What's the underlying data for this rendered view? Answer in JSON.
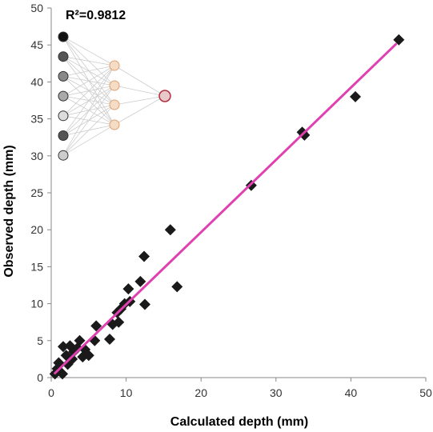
{
  "chart_data": {
    "type": "scatter",
    "title": "",
    "xlabel": "Calculated depth (mm)",
    "ylabel": "Observed depth (mm)",
    "xlim": [
      0,
      50
    ],
    "ylim": [
      0,
      50
    ],
    "x_ticks": [
      0,
      10,
      20,
      30,
      40,
      50
    ],
    "y_ticks": [
      0,
      5,
      10,
      15,
      20,
      25,
      30,
      35,
      40,
      45,
      50
    ],
    "grid": false,
    "legend": "none",
    "annotation": "R²=0.9812",
    "marker": "diamond",
    "marker_color": "#1a1a1a",
    "series": [
      {
        "points": [
          {
            "x": 0.5,
            "y": 0.5
          },
          {
            "x": 0.8,
            "y": 1.2
          },
          {
            "x": 1.0,
            "y": 2.0
          },
          {
            "x": 1.5,
            "y": 0.5
          },
          {
            "x": 1.6,
            "y": 4.2
          },
          {
            "x": 2.0,
            "y": 3.0
          },
          {
            "x": 2.2,
            "y": 1.8
          },
          {
            "x": 2.5,
            "y": 4.3
          },
          {
            "x": 2.8,
            "y": 2.5
          },
          {
            "x": 3.0,
            "y": 3.5
          },
          {
            "x": 3.5,
            "y": 4.0
          },
          {
            "x": 3.8,
            "y": 5.0
          },
          {
            "x": 4.2,
            "y": 2.8
          },
          {
            "x": 4.5,
            "y": 3.8
          },
          {
            "x": 5.0,
            "y": 3.0
          },
          {
            "x": 5.8,
            "y": 5.0
          },
          {
            "x": 6.0,
            "y": 7.0
          },
          {
            "x": 7.8,
            "y": 5.2
          },
          {
            "x": 8.2,
            "y": 7.2
          },
          {
            "x": 8.8,
            "y": 8.8
          },
          {
            "x": 9.0,
            "y": 7.5
          },
          {
            "x": 9.3,
            "y": 9.3
          },
          {
            "x": 9.8,
            "y": 10.0
          },
          {
            "x": 10.3,
            "y": 12.0
          },
          {
            "x": 10.5,
            "y": 10.3
          },
          {
            "x": 11.9,
            "y": 13.0
          },
          {
            "x": 12.4,
            "y": 16.4
          },
          {
            "x": 12.5,
            "y": 9.9
          },
          {
            "x": 15.9,
            "y": 20.0
          },
          {
            "x": 16.8,
            "y": 12.3
          },
          {
            "x": 26.7,
            "y": 26.0
          },
          {
            "x": 33.5,
            "y": 33.2
          },
          {
            "x": 33.8,
            "y": 32.8
          },
          {
            "x": 40.6,
            "y": 38.0
          },
          {
            "x": 46.4,
            "y": 45.7
          }
        ]
      }
    ],
    "trendline": {
      "x": [
        0.5,
        46.0
      ],
      "y": [
        0.6,
        45.1
      ],
      "color": "#e040b0"
    },
    "network_icon": {
      "input_fills": [
        "#111111",
        "#555555",
        "#888888",
        "#aaaaaa",
        "#dddddd",
        "#555555",
        "#cccccc"
      ],
      "hidden_fill": "#f5ddc5",
      "hidden_stroke": "#e0a070",
      "output_fill": "#e8c8c8",
      "output_stroke": "#b03040"
    }
  }
}
